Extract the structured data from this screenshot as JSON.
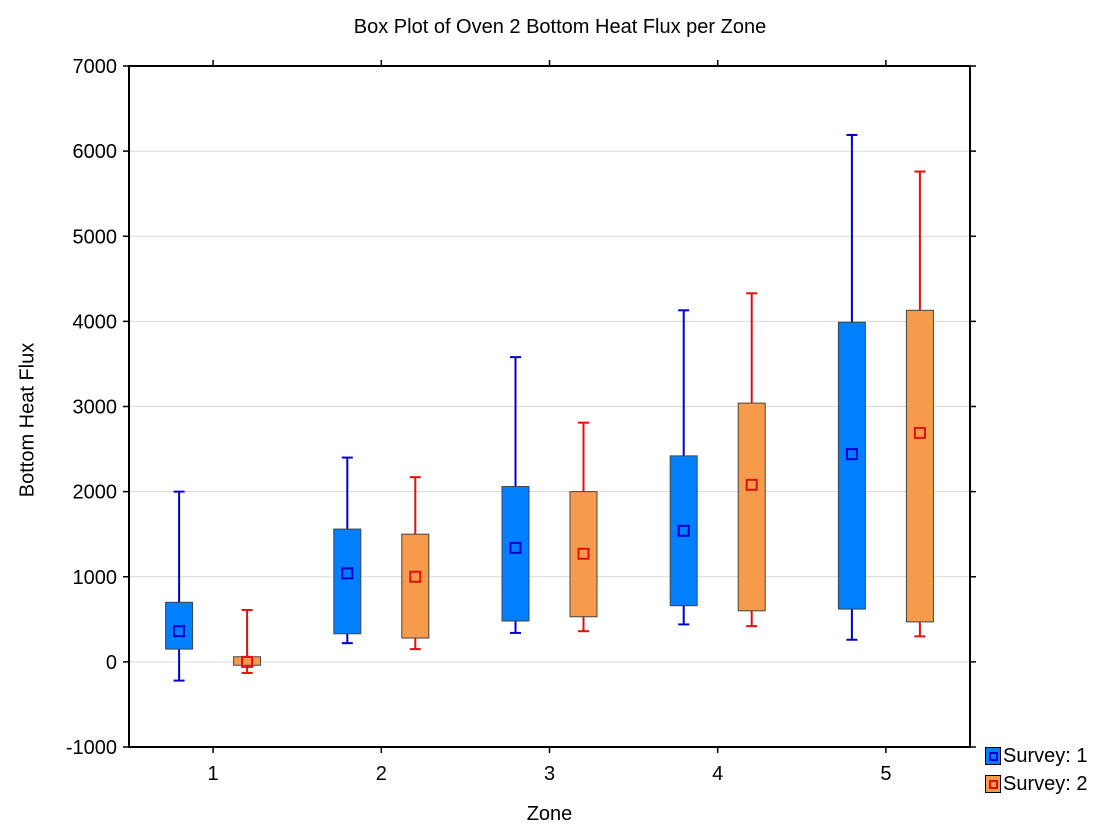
{
  "chart_data": {
    "type": "box",
    "title": "Box Plot of Oven 2 Bottom Heat Flux per Zone",
    "xlabel": "Zone",
    "ylabel": "Bottom Heat Flux",
    "ylim": [
      -1000,
      7000
    ],
    "yticks": [
      -1000,
      0,
      1000,
      2000,
      3000,
      4000,
      5000,
      6000,
      7000
    ],
    "categories": [
      "1",
      "2",
      "3",
      "4",
      "5"
    ],
    "grid": true,
    "legend_position": "bottom-right outside",
    "series": [
      {
        "name": "Survey: 1",
        "fill": "#0080ff",
        "whisker_color": "#0000cc",
        "marker_color": "#0000cc",
        "boxes": [
          {
            "whisker_low": -220,
            "q1": 150,
            "center": 360,
            "q3": 700,
            "whisker_high": 2000
          },
          {
            "whisker_low": 220,
            "q1": 330,
            "center": 1040,
            "q3": 1560,
            "whisker_high": 2400
          },
          {
            "whisker_low": 340,
            "q1": 480,
            "center": 1340,
            "q3": 2060,
            "whisker_high": 3580
          },
          {
            "whisker_low": 440,
            "q1": 660,
            "center": 1540,
            "q3": 2420,
            "whisker_high": 4130
          },
          {
            "whisker_low": 260,
            "q1": 620,
            "center": 2440,
            "q3": 3990,
            "whisker_high": 6190
          }
        ]
      },
      {
        "name": "Survey: 2",
        "fill": "#f59b4b",
        "whisker_color": "#e01010",
        "marker_color": "#e01010",
        "boxes": [
          {
            "whisker_low": -130,
            "q1": -40,
            "center": 0,
            "q3": 60,
            "whisker_high": 610
          },
          {
            "whisker_low": 150,
            "q1": 280,
            "center": 1000,
            "q3": 1500,
            "whisker_high": 2170
          },
          {
            "whisker_low": 360,
            "q1": 530,
            "center": 1270,
            "q3": 2000,
            "whisker_high": 2810
          },
          {
            "whisker_low": 420,
            "q1": 600,
            "center": 2080,
            "q3": 3040,
            "whisker_high": 4330
          },
          {
            "whisker_low": 300,
            "q1": 470,
            "center": 2690,
            "q3": 4130,
            "whisker_high": 5760
          }
        ]
      }
    ]
  }
}
